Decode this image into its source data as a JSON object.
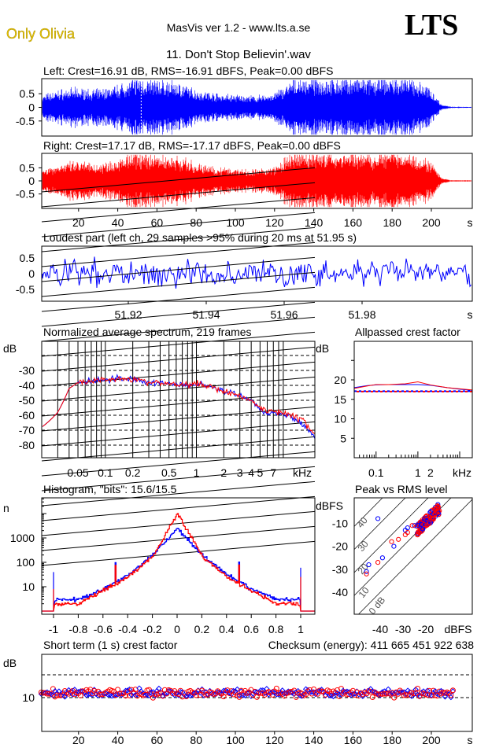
{
  "header": {
    "artist": "Only Olivia",
    "app": "MasVis ver 1.2 - www.lts.a.se",
    "logo": "LTS",
    "file_title": "11. Don't Stop Believin'.wav"
  },
  "colors": {
    "left": "#0000ff",
    "right": "#ff0000",
    "artist": "#e8c400"
  },
  "chart_data": [
    {
      "type": "line",
      "name": "left-waveform",
      "title": "Left: Crest=16.91 dB, RMS=-16.91 dBFS, Peak=0.00 dBFS",
      "yticks": [
        "0.5",
        "0",
        "-0.5"
      ],
      "ylim": [
        -1,
        1
      ],
      "xlim": [
        0,
        220
      ],
      "marker_time_s": 51.95,
      "envelope_s": [
        0,
        10,
        20,
        30,
        40,
        50,
        60,
        70,
        80,
        90,
        100,
        110,
        120,
        130,
        140,
        150,
        160,
        170,
        180,
        190,
        200,
        205,
        210
      ],
      "envelope_amp": [
        0.35,
        0.55,
        0.6,
        0.55,
        0.7,
        0.95,
        0.85,
        0.8,
        0.55,
        0.45,
        0.4,
        0.35,
        0.45,
        0.9,
        0.95,
        0.9,
        0.95,
        0.9,
        0.95,
        0.9,
        0.6,
        0.1,
        0.02
      ]
    },
    {
      "type": "line",
      "name": "right-waveform",
      "title": "Right: Crest=17.17 dB, RMS=-17.17 dBFS, Peak=0.00 dBFS",
      "yticks": [
        "0.5",
        "0",
        "-0.5"
      ],
      "ylim": [
        -1,
        1
      ],
      "xticks": [
        "20",
        "40",
        "60",
        "80",
        "100",
        "120",
        "140",
        "160",
        "180",
        "200"
      ],
      "xunit": "s"
    },
    {
      "type": "line",
      "name": "loudest-part",
      "title": "Loudest part (left  ch, 29 samples >95% during 20 ms at 51.95 s)",
      "yticks": [
        "0.5",
        "0",
        "-0.5"
      ],
      "ylim": [
        -1,
        1
      ],
      "xlim": [
        51.9,
        51.99
      ],
      "xticks": [
        "51.92",
        "51.94",
        "51.96",
        "51.98"
      ],
      "xunit": "s"
    },
    {
      "type": "line",
      "name": "spectrum",
      "title": "Normalized average spectrum, 219 frames",
      "ylabel": "dB",
      "yticks": [
        "-30",
        "-40",
        "-50",
        "-60",
        "-70",
        "-80"
      ],
      "ylim": [
        -90,
        -15
      ],
      "xscale": "log",
      "xlim_khz": [
        0.02,
        20
      ],
      "xticks": [
        "0.05",
        "0.1",
        "0.2",
        "0.5",
        "1",
        "2",
        "3",
        "4",
        "5",
        "7"
      ],
      "xunit": "kHz",
      "x_khz": [
        0.02,
        0.03,
        0.04,
        0.05,
        0.07,
        0.1,
        0.15,
        0.2,
        0.3,
        0.5,
        0.7,
        1,
        1.5,
        2,
        3,
        4,
        5,
        6,
        7,
        10,
        15,
        20
      ],
      "left_db": [
        -68,
        -58,
        -42,
        -38,
        -37,
        -36,
        -35,
        -36,
        -38,
        -39,
        -40,
        -39,
        -41,
        -44,
        -47,
        -50,
        -56,
        -59,
        -58,
        -60,
        -67,
        -74
      ],
      "right_db": [
        -68,
        -58,
        -42,
        -38,
        -37,
        -36,
        -35,
        -36,
        -38,
        -39,
        -40,
        -39,
        -41,
        -44,
        -47,
        -50,
        -55,
        -57,
        -57,
        -59,
        -64,
        -73
      ]
    },
    {
      "type": "line",
      "name": "allpassed-crest",
      "title": "Allpassed crest factor",
      "ylabel": "dB",
      "yticks": [
        "20",
        "15",
        "10",
        "5"
      ],
      "ylim": [
        0,
        30
      ],
      "xticks": [
        "0.1",
        "1",
        "2"
      ],
      "xunit": "kHz",
      "x_khz": [
        0.03,
        0.06,
        0.1,
        0.2,
        0.5,
        1,
        2,
        5,
        10,
        20
      ],
      "left_db": [
        18,
        18.5,
        18.7,
        18.8,
        18.8,
        18.8,
        18.6,
        18,
        17.6,
        17.3
      ],
      "right_db": [
        17.8,
        18.4,
        18.8,
        18.8,
        19,
        19.5,
        18.7,
        18,
        17.7,
        17.4
      ],
      "reference_left": 17.1,
      "reference_right": 17.0
    },
    {
      "type": "line",
      "name": "histogram",
      "title": "Histogram, \"bits\": 15.6/15.5",
      "ylabel": "n",
      "yscale": "log",
      "yticks": [
        "1000",
        "100",
        "10"
      ],
      "xticks": [
        "-1",
        "-0.8",
        "-0.6",
        "-0.4",
        "-0.2",
        "0",
        "0.2",
        "0.4",
        "0.6",
        "0.8",
        "1"
      ],
      "x": [
        -1,
        -0.8,
        -0.6,
        -0.4,
        -0.2,
        0,
        0.2,
        0.4,
        0.6,
        0.8,
        1
      ],
      "left_n": [
        40,
        3,
        8,
        30,
        200,
        2500,
        200,
        30,
        8,
        3,
        60
      ],
      "right_n": [
        8,
        2,
        7,
        25,
        180,
        10000,
        180,
        25,
        7,
        2,
        25
      ]
    },
    {
      "type": "scatter",
      "name": "peak-vs-rms",
      "title": "Peak vs RMS level",
      "ylabel": "dBFS",
      "xlabel": "dBFS",
      "yticks": [
        "-10",
        "-20",
        "-30",
        "-40"
      ],
      "xticks": [
        "-40",
        "-30",
        "-20"
      ],
      "diagonal_labels": [
        "40",
        "30",
        "20",
        "10",
        "0 dB"
      ],
      "xlim": [
        -48,
        -10
      ],
      "ylim": [
        -50,
        0
      ]
    },
    {
      "type": "scatter",
      "name": "short-term-crest",
      "title": "Short term (1 s) crest factor",
      "ylabel": "dB",
      "yticks": [
        "10"
      ],
      "ylim": [
        0,
        30
      ],
      "xlim": [
        0,
        215
      ],
      "xticks": [
        "20",
        "40",
        "60",
        "80",
        "100",
        "120",
        "140",
        "160",
        "180",
        "200"
      ],
      "xunit": "s",
      "mean_db": 12,
      "spread_db": 2.5
    }
  ],
  "checksum": "Checksum (energy):  411 665 451 922 638"
}
